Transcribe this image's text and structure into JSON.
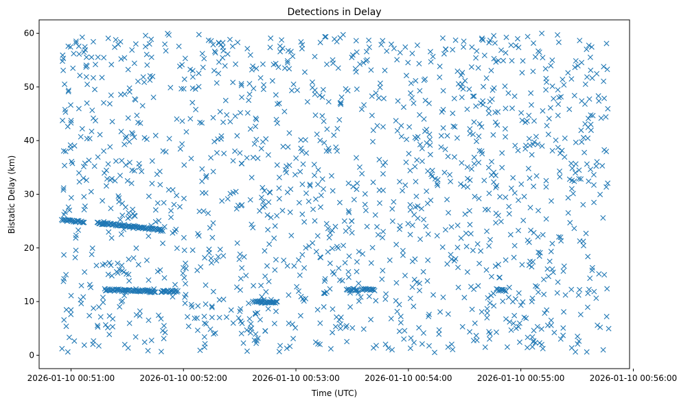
{
  "chart_data": {
    "type": "scatter",
    "title": "Detections in Delay",
    "xlabel": "Time (UTC)",
    "ylabel": "Bistatic Delay (km)",
    "x_axis_type": "datetime",
    "xlim": [
      "2026-01-10 00:50:43",
      "2026-01-10 00:55:58"
    ],
    "ylim": [
      -2.5,
      62.5
    ],
    "x_ticks": [
      "2026-01-10 00:51:00",
      "2026-01-10 00:52:00",
      "2026-01-10 00:53:00",
      "2026-01-10 00:54:00",
      "2026-01-10 00:55:00",
      "2026-01-10 00:56:00"
    ],
    "y_ticks": [
      0,
      10,
      20,
      30,
      40,
      50,
      60
    ],
    "marker": "x",
    "marker_color": "#1f77b4",
    "grid": false,
    "legend": "none",
    "series": [
      {
        "x_range": [
          "2026-01-10 00:50:55",
          "2026-01-10 00:55:47"
        ],
        "y_range": [
          0.5,
          60
        ],
        "approx_point_count": 1700,
        "distribution": "approximately uniform random clutter",
        "clustered_tracks": [
          {
            "x_start": "2026-01-10 00:50:55",
            "x_end": "2026-01-10 00:51:07",
            "y_start": 25.2,
            "y_end": 24.8
          },
          {
            "x_start": "2026-01-10 00:51:14",
            "x_end": "2026-01-10 00:51:34",
            "y_start": 24.6,
            "y_end": 24.0
          },
          {
            "x_start": "2026-01-10 00:51:34",
            "x_end": "2026-01-10 00:51:49",
            "y_start": 23.9,
            "y_end": 23.3
          },
          {
            "x_start": "2026-01-10 00:51:18",
            "x_end": "2026-01-10 00:51:45",
            "y_start": 12.2,
            "y_end": 11.9
          },
          {
            "x_start": "2026-01-10 00:51:48",
            "x_end": "2026-01-10 00:51:57",
            "y_start": 11.9,
            "y_end": 11.9
          },
          {
            "x_start": "2026-01-10 00:52:38",
            "x_end": "2026-01-10 00:52:50",
            "y_start": 10.0,
            "y_end": 9.8
          },
          {
            "x_start": "2026-01-10 00:53:27",
            "x_end": "2026-01-10 00:53:33",
            "y_start": 12.2,
            "y_end": 12.2
          },
          {
            "x_start": "2026-01-10 00:53:35",
            "x_end": "2026-01-10 00:53:42",
            "y_start": 12.2,
            "y_end": 12.2
          },
          {
            "x_start": "2026-01-10 00:54:47",
            "x_end": "2026-01-10 00:54:52",
            "y_start": 12.2,
            "y_end": 12.0
          }
        ]
      }
    ]
  }
}
